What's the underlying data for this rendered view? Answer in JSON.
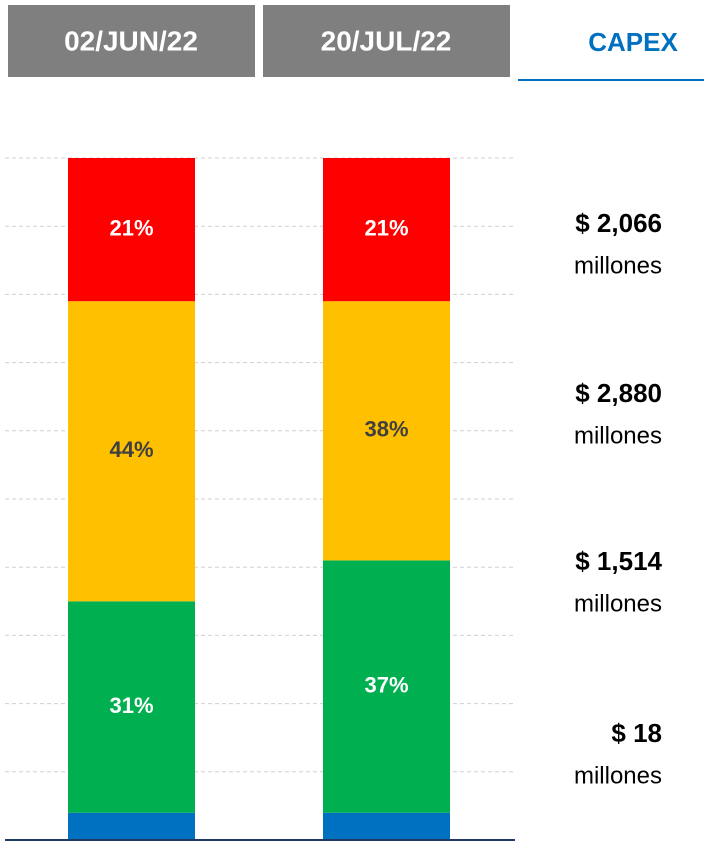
{
  "chart_data": {
    "type": "stacked_bar",
    "tab_label": "CAPEX",
    "categories": [
      "02/JUN/22",
      "20/JUL/22"
    ],
    "series": [
      {
        "name": "$ 18",
        "unit_label": "millones",
        "color": "#0070c0",
        "values": [
          4,
          4
        ]
      },
      {
        "name": "$ 1,514",
        "unit_label": "millones",
        "color": "#00b050",
        "values": [
          31,
          37
        ],
        "value_labels": [
          "31%",
          "37%"
        ],
        "label_color": "#ffffff"
      },
      {
        "name": "$ 2,880",
        "unit_label": "millones",
        "color": "#ffc000",
        "values": [
          44,
          38
        ],
        "value_labels": [
          "44%",
          "38%"
        ],
        "label_color": "#404040"
      },
      {
        "name": "$ 2,066",
        "unit_label": "millones",
        "color": "#ff0000",
        "values": [
          21,
          21
        ],
        "value_labels": [
          "21%",
          "21%"
        ],
        "label_color": "#ffffff"
      }
    ],
    "ylim": [
      0,
      100
    ],
    "yticks": [
      0,
      10,
      20,
      30,
      40,
      50,
      60,
      70,
      80,
      90,
      100
    ],
    "grid": true
  }
}
